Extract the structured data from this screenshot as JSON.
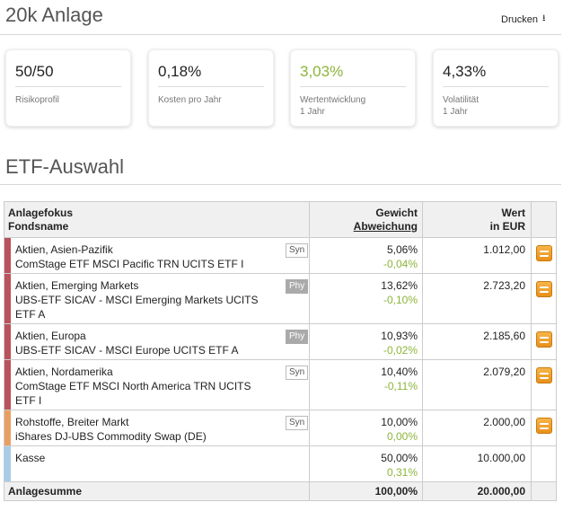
{
  "header": {
    "title": "20k Anlage",
    "print_label": "Drucken",
    "print_icon": "download-icon"
  },
  "cards": [
    {
      "value": "50/50",
      "label": "Risikoprofil",
      "sublabel": ""
    },
    {
      "value": "0,18%",
      "label": "Kosten pro Jahr",
      "sublabel": ""
    },
    {
      "value": "3,03%",
      "label": "Wertentwicklung",
      "sublabel": "1 Jahr",
      "color": "#8cb53a"
    },
    {
      "value": "4,33%",
      "label": "Volatilität",
      "sublabel": "1 Jahr"
    }
  ],
  "etf": {
    "title": "ETF-Auswahl",
    "headers": {
      "col1_line1": "Anlagefokus",
      "col1_line2": "Fondsname",
      "col2_line1": "Gewicht",
      "col2_line2": "Abweichung",
      "col3_line1": "Wert",
      "col3_line2": "in EUR"
    },
    "rows": [
      {
        "category": "Aktien, Asien-Pazifik",
        "fund": "ComStage ETF MSCI Pacific TRN UCITS ETF I",
        "tag": "Syn",
        "weight": "5,06%",
        "deviation": "-0,04%",
        "value": "1.012,00",
        "color": "#b9525d"
      },
      {
        "category": "Aktien, Emerging Markets",
        "fund": "UBS-ETF SICAV - MSCI Emerging Markets UCITS ETF A",
        "tag": "Phy",
        "weight": "13,62%",
        "deviation": "-0,10%",
        "value": "2.723,20",
        "color": "#b9525d"
      },
      {
        "category": "Aktien, Europa",
        "fund": "UBS-ETF SICAV - MSCI Europe UCITS ETF A",
        "tag": "Phy",
        "weight": "10,93%",
        "deviation": "-0,02%",
        "value": "2.185,60",
        "color": "#b9525d"
      },
      {
        "category": "Aktien, Nordamerika",
        "fund": "ComStage ETF MSCI North America TRN UCITS ETF I",
        "tag": "Syn",
        "weight": "10,40%",
        "deviation": "-0,11%",
        "value": "2.079,20",
        "color": "#b9525d"
      },
      {
        "category": "Rohstoffe, Breiter Markt",
        "fund": "iShares DJ-UBS Commodity Swap (DE)",
        "tag": "Syn",
        "weight": "10,00%",
        "deviation": "0,00%",
        "value": "2.000,00",
        "color": "#e8a062"
      },
      {
        "category": "Kasse",
        "fund": "",
        "tag": "",
        "weight": "50,00%",
        "deviation": "0,31%",
        "value": "10.000,00",
        "color": "#a8cbe8"
      }
    ],
    "footer": {
      "label": "Anlagesumme",
      "weight": "100,00%",
      "value": "20.000,00"
    },
    "action_icon": "reallocate-icon"
  }
}
